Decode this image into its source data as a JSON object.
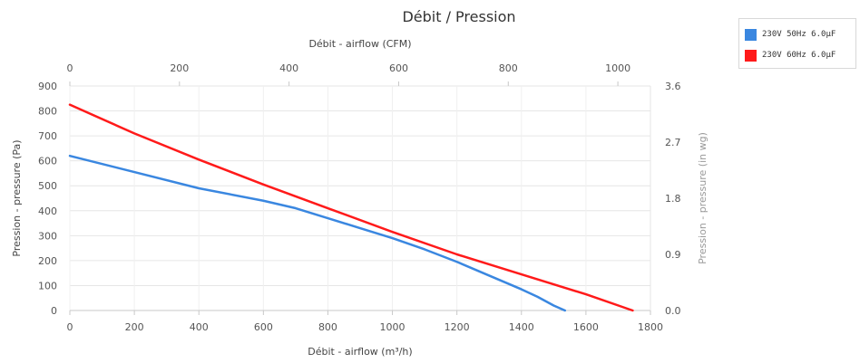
{
  "chart_data": {
    "type": "line",
    "title": "Débit / Pression",
    "x_top_label": "Débit - airflow (CFM)",
    "x_top_ticks": [
      "0",
      "200",
      "400",
      "600",
      "800",
      "1000"
    ],
    "x_top_tick_values": [
      0,
      200,
      400,
      600,
      800,
      1000
    ],
    "x_top_lim": [
      0,
      1059.44
    ],
    "xlabel": "Débit - airflow (m³/h)",
    "x_ticks": [
      "0",
      "200",
      "400",
      "600",
      "800",
      "1000",
      "1200",
      "1400",
      "1600",
      "1800"
    ],
    "x_lim": [
      0,
      1800
    ],
    "ylabel": "Pression - pressure (Pa)",
    "y_ticks": [
      "0",
      "100",
      "200",
      "300",
      "400",
      "500",
      "600",
      "700",
      "800",
      "900"
    ],
    "y_lim": [
      0,
      900
    ],
    "y_right_label": "Pression - pressure (in wg)",
    "y_right_ticks": [
      "0.0",
      "0.9",
      "1.8",
      "2.7",
      "3.6"
    ],
    "y_right_tick_values": [
      0,
      0.9,
      1.8,
      2.7,
      3.6
    ],
    "y_right_lim": [
      0,
      3.6
    ],
    "grid": true,
    "legend_position": "top-right",
    "series": [
      {
        "name": "230V 50Hz 6.0µF",
        "color": "#3a87e0",
        "x": [
          0,
          200,
          400,
          600,
          700,
          800,
          900,
          1000,
          1100,
          1200,
          1300,
          1400,
          1450,
          1500,
          1535
        ],
        "y": [
          620,
          555,
          490,
          440,
          410,
          370,
          330,
          290,
          245,
          195,
          140,
          85,
          55,
          20,
          0
        ]
      },
      {
        "name": "230V 60Hz 6.0µF",
        "color": "#ff1a1a",
        "x": [
          0,
          200,
          400,
          600,
          800,
          1000,
          1200,
          1400,
          1600,
          1745
        ],
        "y": [
          825,
          710,
          605,
          505,
          410,
          315,
          225,
          145,
          65,
          0
        ]
      }
    ]
  }
}
